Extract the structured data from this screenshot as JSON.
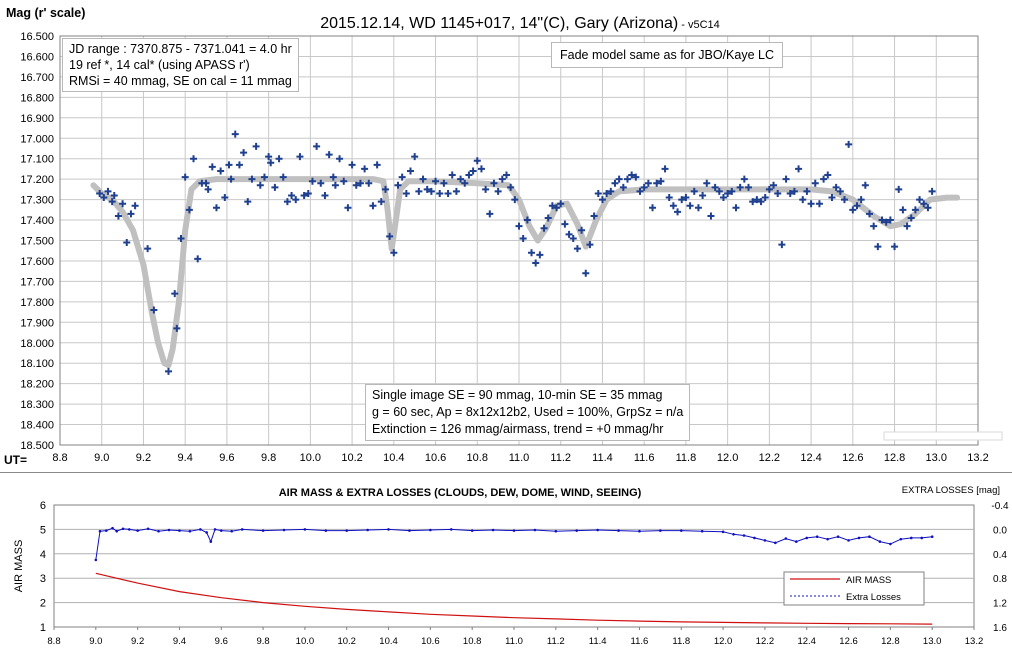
{
  "chart_data": [
    {
      "type": "scatter",
      "title": "2015.12.14, WD 1145+017, 14\"(C), Gary (Arizona)",
      "title_suffix": " - v5C14",
      "ylabel": "Mag (r' scale)",
      "xlabel": "UT=",
      "xlim": [
        8.8,
        13.2
      ],
      "ylim": [
        16.5,
        18.5
      ],
      "y_inverted": true,
      "grid": true,
      "x_ticks": [
        "8.8",
        "9.0",
        "9.2",
        "9.4",
        "9.6",
        "9.8",
        "10.0",
        "10.2",
        "10.4",
        "10.6",
        "10.8",
        "11.0",
        "11.2",
        "11.4",
        "11.6",
        "11.8",
        "12.0",
        "12.2",
        "12.4",
        "12.6",
        "12.8",
        "13.0",
        "13.2"
      ],
      "y_ticks": [
        "16.500",
        "16.600",
        "16.700",
        "16.800",
        "16.900",
        "17.000",
        "17.100",
        "17.200",
        "17.300",
        "17.400",
        "17.500",
        "17.600",
        "17.700",
        "17.800",
        "17.900",
        "18.000",
        "18.100",
        "18.200",
        "18.300",
        "18.400",
        "18.500"
      ],
      "colors": {
        "points": "#1f3f8f",
        "model": "#c0c0c0"
      },
      "annotations": {
        "info_box": [
          "JD range : 7370.875 - 7371.041 = 4.0 hr",
          "19 ref *, 14 cal* (using APASS r')",
          "RMSi = 40 mmag, SE on cal = 11 mmag"
        ],
        "model_note": "Fade model same as for JBO/Kaye LC",
        "stats_box": [
          "Single image SE = 90 mmag, 10-min SE = 35 mmag",
          "g = 60 sec, Ap = 8x12x12b2, Used = 100%, GrpSz = n/a",
          "Extinction = 126 mmag/airmass, trend = +0 mmag/hr"
        ]
      },
      "model": [
        [
          8.96,
          17.23
        ],
        [
          9.0,
          17.27
        ],
        [
          9.05,
          17.3
        ],
        [
          9.1,
          17.36
        ],
        [
          9.15,
          17.45
        ],
        [
          9.2,
          17.62
        ],
        [
          9.24,
          17.85
        ],
        [
          9.27,
          18.0
        ],
        [
          9.3,
          18.1
        ],
        [
          9.32,
          18.11
        ],
        [
          9.34,
          18.03
        ],
        [
          9.37,
          17.8
        ],
        [
          9.4,
          17.45
        ],
        [
          9.43,
          17.25
        ],
        [
          9.47,
          17.21
        ],
        [
          9.55,
          17.2
        ],
        [
          9.7,
          17.2
        ],
        [
          9.9,
          17.2
        ],
        [
          10.1,
          17.2
        ],
        [
          10.3,
          17.2
        ],
        [
          10.35,
          17.21
        ],
        [
          10.37,
          17.35
        ],
        [
          10.39,
          17.54
        ],
        [
          10.41,
          17.4
        ],
        [
          10.43,
          17.25
        ],
        [
          10.47,
          17.21
        ],
        [
          10.6,
          17.21
        ],
        [
          10.8,
          17.22
        ],
        [
          10.95,
          17.23
        ],
        [
          11.0,
          17.3
        ],
        [
          11.05,
          17.43
        ],
        [
          11.09,
          17.5
        ],
        [
          11.13,
          17.44
        ],
        [
          11.18,
          17.33
        ],
        [
          11.23,
          17.32
        ],
        [
          11.28,
          17.42
        ],
        [
          11.32,
          17.53
        ],
        [
          11.37,
          17.4
        ],
        [
          11.42,
          17.3
        ],
        [
          11.48,
          17.26
        ],
        [
          11.6,
          17.25
        ],
        [
          11.8,
          17.25
        ],
        [
          12.0,
          17.25
        ],
        [
          12.2,
          17.25
        ],
        [
          12.4,
          17.25
        ],
        [
          12.5,
          17.26
        ],
        [
          12.6,
          17.3
        ],
        [
          12.7,
          17.38
        ],
        [
          12.78,
          17.43
        ],
        [
          12.83,
          17.42
        ],
        [
          12.9,
          17.37
        ],
        [
          12.97,
          17.3
        ],
        [
          13.05,
          17.29
        ],
        [
          13.1,
          17.29
        ]
      ],
      "points": [
        [
          8.99,
          17.27
        ],
        [
          9.01,
          17.29
        ],
        [
          9.03,
          17.26
        ],
        [
          9.05,
          17.31
        ],
        [
          9.06,
          17.28
        ],
        [
          9.08,
          17.38
        ],
        [
          9.1,
          17.32
        ],
        [
          9.12,
          17.51
        ],
        [
          9.14,
          17.37
        ],
        [
          9.16,
          17.33
        ],
        [
          9.22,
          17.54
        ],
        [
          9.25,
          17.84
        ],
        [
          9.32,
          18.14
        ],
        [
          9.35,
          17.76
        ],
        [
          9.36,
          17.93
        ],
        [
          9.38,
          17.49
        ],
        [
          9.4,
          17.19
        ],
        [
          9.42,
          17.35
        ],
        [
          9.44,
          17.1
        ],
        [
          9.46,
          17.59
        ],
        [
          9.48,
          17.22
        ],
        [
          9.5,
          17.22
        ],
        [
          9.51,
          17.25
        ],
        [
          9.53,
          17.14
        ],
        [
          9.55,
          17.34
        ],
        [
          9.57,
          17.16
        ],
        [
          9.59,
          17.29
        ],
        [
          9.61,
          17.13
        ],
        [
          9.62,
          17.2
        ],
        [
          9.64,
          16.98
        ],
        [
          9.66,
          17.13
        ],
        [
          9.68,
          17.07
        ],
        [
          9.7,
          17.31
        ],
        [
          9.72,
          17.2
        ],
        [
          9.74,
          17.04
        ],
        [
          9.76,
          17.23
        ],
        [
          9.78,
          17.19
        ],
        [
          9.8,
          17.09
        ],
        [
          9.81,
          17.12
        ],
        [
          9.83,
          17.24
        ],
        [
          9.85,
          17.1
        ],
        [
          9.87,
          17.19
        ],
        [
          9.89,
          17.31
        ],
        [
          9.91,
          17.28
        ],
        [
          9.93,
          17.3
        ],
        [
          9.95,
          17.09
        ],
        [
          9.97,
          17.28
        ],
        [
          9.99,
          17.27
        ],
        [
          10.01,
          17.21
        ],
        [
          10.03,
          17.04
        ],
        [
          10.05,
          17.22
        ],
        [
          10.07,
          17.28
        ],
        [
          10.09,
          17.08
        ],
        [
          10.11,
          17.19
        ],
        [
          10.12,
          17.23
        ],
        [
          10.14,
          17.1
        ],
        [
          10.16,
          17.21
        ],
        [
          10.18,
          17.34
        ],
        [
          10.2,
          17.13
        ],
        [
          10.22,
          17.23
        ],
        [
          10.24,
          17.22
        ],
        [
          10.26,
          17.15
        ],
        [
          10.28,
          17.22
        ],
        [
          10.3,
          17.33
        ],
        [
          10.32,
          17.13
        ],
        [
          10.34,
          17.31
        ],
        [
          10.36,
          17.25
        ],
        [
          10.38,
          17.48
        ],
        [
          10.4,
          17.56
        ],
        [
          10.42,
          17.23
        ],
        [
          10.44,
          17.19
        ],
        [
          10.46,
          17.27
        ],
        [
          10.48,
          17.16
        ],
        [
          10.5,
          17.09
        ],
        [
          10.52,
          17.26
        ],
        [
          10.54,
          17.2
        ],
        [
          10.56,
          17.25
        ],
        [
          10.58,
          17.26
        ],
        [
          10.6,
          17.21
        ],
        [
          10.62,
          17.27
        ],
        [
          10.64,
          17.22
        ],
        [
          10.66,
          17.27
        ],
        [
          10.68,
          17.18
        ],
        [
          10.7,
          17.26
        ],
        [
          10.72,
          17.2
        ],
        [
          10.74,
          17.22
        ],
        [
          10.76,
          17.18
        ],
        [
          10.78,
          17.16
        ],
        [
          10.8,
          17.11
        ],
        [
          10.82,
          17.15
        ],
        [
          10.84,
          17.25
        ],
        [
          10.86,
          17.37
        ],
        [
          10.88,
          17.22
        ],
        [
          10.9,
          17.26
        ],
        [
          10.92,
          17.2
        ],
        [
          10.94,
          17.18
        ],
        [
          10.96,
          17.24
        ],
        [
          10.98,
          17.3
        ],
        [
          11.0,
          17.43
        ],
        [
          11.02,
          17.49
        ],
        [
          11.04,
          17.4
        ],
        [
          11.06,
          17.56
        ],
        [
          11.08,
          17.61
        ],
        [
          11.1,
          17.57
        ],
        [
          11.12,
          17.44
        ],
        [
          11.14,
          17.39
        ],
        [
          11.16,
          17.33
        ],
        [
          11.18,
          17.34
        ],
        [
          11.2,
          17.32
        ],
        [
          11.22,
          17.42
        ],
        [
          11.24,
          17.47
        ],
        [
          11.26,
          17.49
        ],
        [
          11.28,
          17.54
        ],
        [
          11.3,
          17.45
        ],
        [
          11.32,
          17.66
        ],
        [
          11.34,
          17.52
        ],
        [
          11.36,
          17.38
        ],
        [
          11.38,
          17.27
        ],
        [
          11.4,
          17.3
        ],
        [
          11.42,
          17.27
        ],
        [
          11.44,
          17.26
        ],
        [
          11.46,
          17.22
        ],
        [
          11.48,
          17.2
        ],
        [
          11.5,
          17.24
        ],
        [
          11.52,
          17.2
        ],
        [
          11.54,
          17.18
        ],
        [
          11.56,
          17.19
        ],
        [
          11.58,
          17.26
        ],
        [
          11.6,
          17.24
        ],
        [
          11.62,
          17.22
        ],
        [
          11.64,
          17.34
        ],
        [
          11.66,
          17.22
        ],
        [
          11.68,
          17.21
        ],
        [
          11.7,
          17.15
        ],
        [
          11.72,
          17.29
        ],
        [
          11.74,
          17.33
        ],
        [
          11.76,
          17.36
        ],
        [
          11.78,
          17.3
        ],
        [
          11.8,
          17.29
        ],
        [
          11.82,
          17.33
        ],
        [
          11.84,
          17.26
        ],
        [
          11.86,
          17.34
        ],
        [
          11.88,
          17.28
        ],
        [
          11.9,
          17.22
        ],
        [
          11.92,
          17.38
        ],
        [
          11.94,
          17.24
        ],
        [
          11.96,
          17.26
        ],
        [
          11.98,
          17.29
        ],
        [
          12.0,
          17.27
        ],
        [
          12.02,
          17.26
        ],
        [
          12.04,
          17.34
        ],
        [
          12.06,
          17.24
        ],
        [
          12.08,
          17.2
        ],
        [
          12.1,
          17.24
        ],
        [
          12.12,
          17.31
        ],
        [
          12.14,
          17.3
        ],
        [
          12.16,
          17.31
        ],
        [
          12.18,
          17.29
        ],
        [
          12.2,
          17.25
        ],
        [
          12.22,
          17.23
        ],
        [
          12.24,
          17.27
        ],
        [
          12.26,
          17.52
        ],
        [
          12.28,
          17.2
        ],
        [
          12.3,
          17.27
        ],
        [
          12.32,
          17.26
        ],
        [
          12.34,
          17.15
        ],
        [
          12.36,
          17.3
        ],
        [
          12.38,
          17.26
        ],
        [
          12.4,
          17.32
        ],
        [
          12.42,
          17.22
        ],
        [
          12.44,
          17.32
        ],
        [
          12.46,
          17.2
        ],
        [
          12.48,
          17.18
        ],
        [
          12.5,
          17.29
        ],
        [
          12.52,
          17.24
        ],
        [
          12.54,
          17.26
        ],
        [
          12.56,
          17.3
        ],
        [
          12.58,
          17.03
        ],
        [
          12.6,
          17.35
        ],
        [
          12.62,
          17.33
        ],
        [
          12.64,
          17.3
        ],
        [
          12.66,
          17.23
        ],
        [
          12.68,
          17.37
        ],
        [
          12.7,
          17.43
        ],
        [
          12.72,
          17.53
        ],
        [
          12.74,
          17.4
        ],
        [
          12.76,
          17.41
        ],
        [
          12.78,
          17.4
        ],
        [
          12.8,
          17.53
        ],
        [
          12.82,
          17.25
        ],
        [
          12.84,
          17.35
        ],
        [
          12.86,
          17.43
        ],
        [
          12.88,
          17.39
        ],
        [
          12.9,
          17.35
        ],
        [
          12.92,
          17.3
        ],
        [
          12.94,
          17.32
        ],
        [
          12.96,
          17.34
        ],
        [
          12.98,
          17.26
        ]
      ]
    },
    {
      "type": "line",
      "title": "AIR MASS & EXTRA LOSSES (CLOUDS, DEW, DOME, WIND, SEEING)",
      "ylabel": "AIR MASS",
      "y2label": "EXTRA LOSSES [mag]",
      "xlim": [
        8.8,
        13.2
      ],
      "ylim": [
        1,
        6
      ],
      "y2lim": [
        -0.4,
        1.6
      ],
      "y2_inverted": true,
      "x_ticks": [
        "8.8",
        "9.0",
        "9.2",
        "9.4",
        "9.6",
        "9.8",
        "10.0",
        "10.2",
        "10.4",
        "10.6",
        "10.8",
        "11.0",
        "11.2",
        "11.4",
        "11.6",
        "11.8",
        "12.0",
        "12.2",
        "12.4",
        "12.6",
        "12.8",
        "13.0",
        "13.2"
      ],
      "y_ticks": [
        "1",
        "2",
        "3",
        "4",
        "5",
        "6"
      ],
      "y2_ticks": [
        "-0.4",
        "0.0",
        "0.4",
        "0.8",
        "1.2",
        "1.6"
      ],
      "legend_position": "bottom-right",
      "colors": {
        "air_mass": "#d01010",
        "extra_losses": "#1010c0"
      },
      "series": [
        {
          "name": "AIR MASS",
          "x": [
            9.0,
            9.2,
            9.4,
            9.6,
            9.8,
            10.0,
            10.2,
            10.4,
            10.6,
            10.8,
            11.0,
            11.2,
            11.4,
            11.6,
            11.8,
            12.0,
            12.2,
            12.4,
            12.6,
            12.8,
            13.0
          ],
          "values": [
            3.2,
            2.8,
            2.45,
            2.2,
            2.0,
            1.85,
            1.72,
            1.62,
            1.52,
            1.45,
            1.38,
            1.33,
            1.28,
            1.24,
            1.21,
            1.19,
            1.17,
            1.15,
            1.14,
            1.13,
            1.12
          ]
        },
        {
          "name": "Extra Losses",
          "x": [
            9.0,
            9.02,
            9.05,
            9.08,
            9.1,
            9.13,
            9.16,
            9.2,
            9.25,
            9.3,
            9.35,
            9.4,
            9.45,
            9.5,
            9.53,
            9.55,
            9.57,
            9.6,
            9.65,
            9.7,
            9.8,
            9.9,
            10.0,
            10.1,
            10.2,
            10.3,
            10.4,
            10.5,
            10.6,
            10.7,
            10.8,
            10.9,
            11.0,
            11.1,
            11.2,
            11.3,
            11.4,
            11.5,
            11.6,
            11.7,
            11.8,
            11.9,
            12.0,
            12.05,
            12.1,
            12.15,
            12.2,
            12.25,
            12.3,
            12.35,
            12.4,
            12.45,
            12.5,
            12.55,
            12.6,
            12.65,
            12.7,
            12.75,
            12.8,
            12.85,
            12.9,
            12.95,
            13.0
          ],
          "values": [
            0.5,
            0.03,
            0.02,
            -0.02,
            0.03,
            -0.01,
            0.0,
            0.02,
            -0.01,
            0.03,
            0.01,
            0.02,
            0.03,
            0.0,
            0.05,
            0.2,
            0.0,
            0.02,
            0.03,
            0.0,
            0.02,
            0.01,
            0.0,
            0.02,
            0.02,
            0.01,
            0.0,
            0.02,
            0.01,
            0.0,
            0.02,
            0.01,
            0.02,
            0.01,
            0.03,
            0.02,
            0.01,
            0.02,
            0.03,
            0.02,
            0.02,
            0.03,
            0.04,
            0.08,
            0.1,
            0.14,
            0.18,
            0.22,
            0.15,
            0.2,
            0.14,
            0.12,
            0.16,
            0.12,
            0.18,
            0.14,
            0.12,
            0.2,
            0.24,
            0.16,
            0.14,
            0.14,
            0.12
          ]
        }
      ]
    }
  ]
}
